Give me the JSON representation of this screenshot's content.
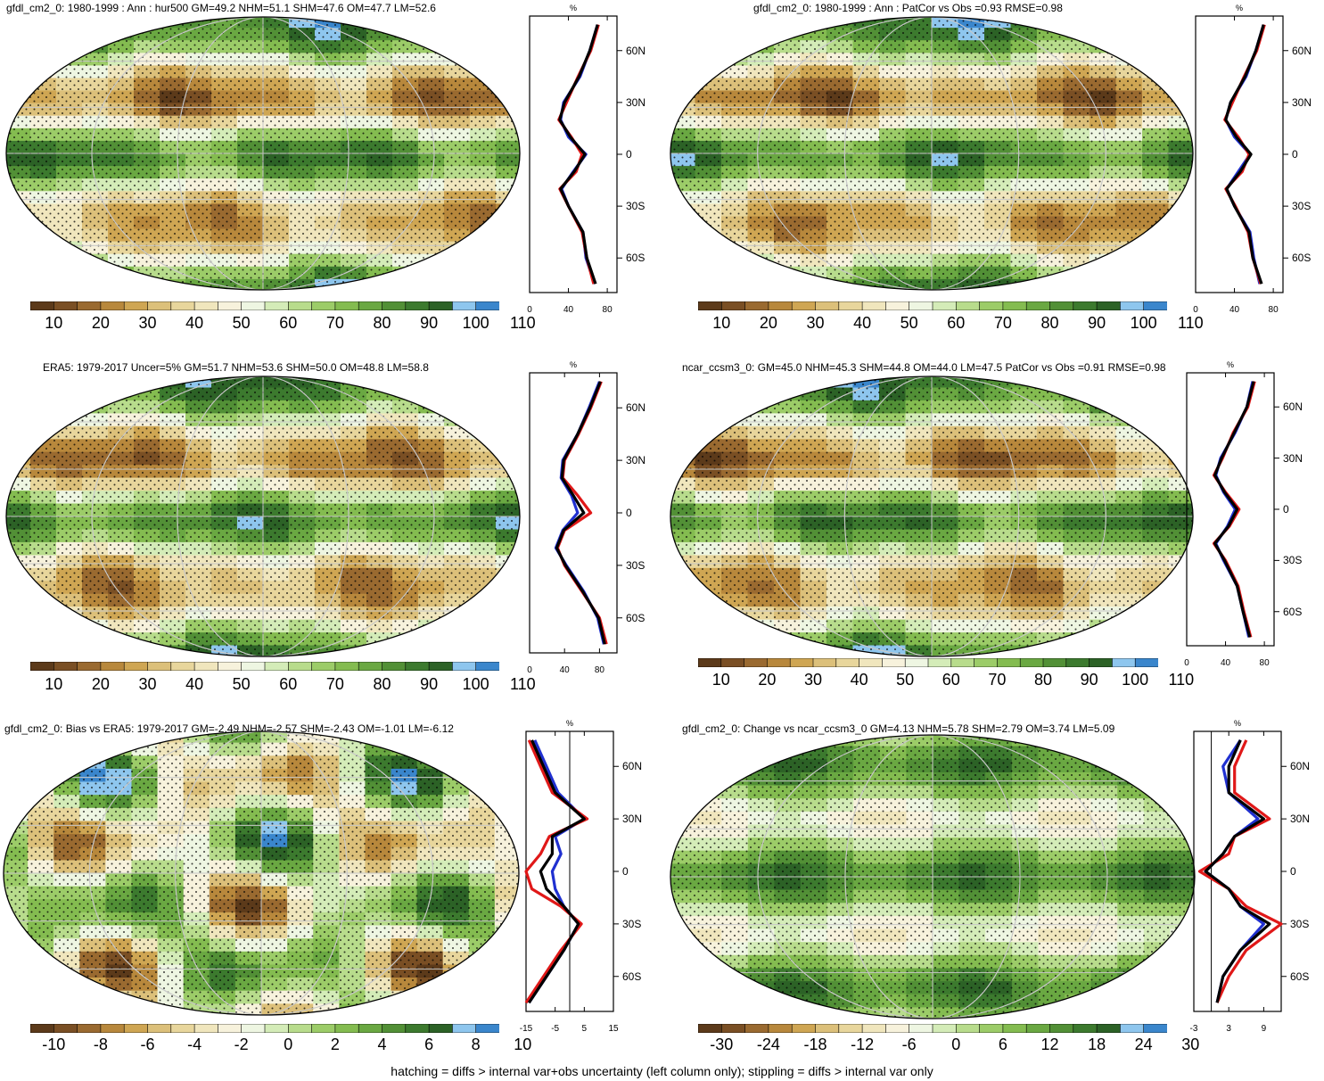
{
  "footer": "hatching = diffs > internal var+obs uncertainty (left column only); stippling = diffs > internal var only",
  "colors": {
    "browns": [
      "#5c3a1a",
      "#7a4f24",
      "#9a6a30",
      "#b8883c",
      "#cfa653",
      "#dcc07a",
      "#e8d69c",
      "#f0e6bd",
      "#f7f2dc"
    ],
    "white": "#ffffff",
    "greens": [
      "#eef6e2",
      "#d4ecb8",
      "#b8dc8c",
      "#9ccc68",
      "#84bc50",
      "#6aa842",
      "#529036",
      "#3c7a2e",
      "#2c6226"
    ],
    "blues": [
      "#8ec6ee",
      "#3a86cc"
    ],
    "obs": "#2030d0",
    "model": "#e01818",
    "ref": "#000000"
  },
  "chart_data": [
    {
      "type": "heatmap",
      "title": "gfdl_cm2_0: 1980-1999 : Ann : hur500 GM=49.2 NHM=51.1 SHM=47.6 OM=47.7 LM=52.6",
      "colorbar_labels": [
        "10",
        "20",
        "30",
        "40",
        "50",
        "60",
        "70",
        "80",
        "90",
        "100",
        "110"
      ],
      "zonal": {
        "unit": "%",
        "xticks": [
          "0",
          "40",
          "80"
        ],
        "xlim": [
          0,
          90
        ],
        "yticks": [
          "60N",
          "30N",
          "0",
          "30S",
          "60S"
        ],
        "lat": [
          -75,
          -60,
          -45,
          -30,
          -20,
          -10,
          0,
          10,
          20,
          30,
          45,
          60,
          75
        ],
        "series": [
          {
            "color": "blue",
            "values": [
              67,
              58,
              55,
              40,
              33,
              45,
              58,
              40,
              32,
              35,
              52,
              62,
              70
            ]
          },
          {
            "color": "red",
            "values": [
              66,
              59,
              54,
              40,
              31,
              48,
              54,
              43,
              30,
              38,
              50,
              63,
              71
            ]
          },
          {
            "color": "black",
            "values": [
              68,
              59,
              55,
              40,
              32,
              46,
              57,
              42,
              31,
              36,
              51,
              62,
              70
            ]
          }
        ]
      }
    },
    {
      "type": "heatmap",
      "title": "gfdl_cm2_0: 1980-1999 : Ann : PatCor vs Obs =0.93 RMSE=0.98",
      "colorbar_labels": [
        "10",
        "20",
        "30",
        "40",
        "50",
        "60",
        "70",
        "80",
        "90",
        "100",
        "110"
      ],
      "zonal": {
        "unit": "%",
        "xticks": [
          "0",
          "40",
          "80"
        ],
        "xlim": [
          0,
          90
        ],
        "yticks": [
          "60N",
          "30N",
          "0",
          "30S",
          "60S"
        ],
        "lat": [
          -75,
          -60,
          -45,
          -30,
          -20,
          -10,
          0,
          10,
          20,
          30,
          45,
          60,
          75
        ],
        "series": [
          {
            "color": "blue",
            "values": [
              66,
              60,
              56,
              40,
              32,
              44,
              56,
              40,
              31,
              36,
              52,
              62,
              70
            ]
          },
          {
            "color": "red",
            "values": [
              67,
              59,
              54,
              41,
              31,
              48,
              55,
              44,
              30,
              38,
              50,
              63,
              71
            ]
          },
          {
            "color": "black",
            "values": [
              68,
              59,
              55,
              40,
              32,
              46,
              57,
              42,
              31,
              36,
              51,
              62,
              70
            ]
          }
        ]
      }
    },
    {
      "type": "heatmap",
      "title": "ERA5: 1979-2017 Uncer=5% GM=51.7 NHM=53.6 SHM=50.0 OM=48.8 LM=58.8",
      "colorbar_labels": [
        "10",
        "20",
        "30",
        "40",
        "50",
        "60",
        "70",
        "80",
        "90",
        "100",
        "110"
      ],
      "zonal": {
        "unit": "%",
        "xticks": [
          "0",
          "40",
          "80"
        ],
        "xlim": [
          0,
          100
        ],
        "yticks": [
          "60N",
          "30N",
          "0",
          "30S",
          "60S"
        ],
        "lat": [
          -75,
          -60,
          -45,
          -30,
          -20,
          -10,
          0,
          10,
          20,
          30,
          45,
          60,
          75
        ],
        "series": [
          {
            "color": "blue",
            "values": [
              85,
              78,
              62,
              42,
              30,
              38,
              55,
              48,
              36,
              38,
              55,
              68,
              80
            ]
          },
          {
            "color": "red",
            "values": [
              88,
              80,
              60,
              40,
              32,
              40,
              70,
              55,
              38,
              40,
              56,
              70,
              82
            ]
          },
          {
            "color": "black",
            "values": [
              86,
              79,
              61,
              41,
              31,
              39,
              62,
              50,
              37,
              39,
              55,
              69,
              81
            ]
          }
        ]
      }
    },
    {
      "type": "heatmap",
      "title": "ncar_ccsm3_0: GM=45.0 NHM=45.3 SHM=44.8 OM=44.0 LM=47.5 PatCor vs Obs =0.91 RMSE=0.98",
      "colorbar_labels": [
        "10",
        "20",
        "30",
        "40",
        "50",
        "60",
        "70",
        "80",
        "90",
        "100",
        "110"
      ],
      "zonal": {
        "unit": "%",
        "xticks": [
          "0",
          "40",
          "80"
        ],
        "xlim": [
          0,
          90
        ],
        "yticks": [
          "60N",
          "30N",
          "0",
          "30S",
          "60S"
        ],
        "lat": [
          -75,
          -60,
          -45,
          -30,
          -20,
          -10,
          0,
          10,
          20,
          30,
          45,
          60,
          75
        ],
        "series": [
          {
            "color": "blue",
            "values": [
              64,
              58,
              52,
              38,
              30,
              42,
              50,
              38,
              30,
              35,
              50,
              62,
              68
            ]
          },
          {
            "color": "red",
            "values": [
              66,
              59,
              53,
              40,
              28,
              44,
              54,
              40,
              28,
              37,
              48,
              63,
              70
            ]
          },
          {
            "color": "black",
            "values": [
              65,
              58,
              52,
              39,
              29,
              43,
              52,
              39,
              29,
              36,
              49,
              62,
              69
            ]
          }
        ]
      }
    },
    {
      "type": "heatmap",
      "title": "gfdl_cm2_0: Bias vs ERA5: 1979-2017 GM=-2.49 NHM=-2.57 SHM=-2.43 OM=-1.01 LM=-6.12",
      "colorbar_labels": [
        "-10",
        "-8",
        "-6",
        "-4",
        "-2",
        "0",
        "2",
        "4",
        "6",
        "8",
        "10"
      ],
      "zonal": {
        "unit": "%",
        "xticks": [
          "-15",
          "-5",
          "5",
          "15"
        ],
        "xlim": [
          -15,
          15
        ],
        "yticks": [
          "60N",
          "30N",
          "0",
          "30S",
          "60S"
        ],
        "lat": [
          -75,
          -60,
          -45,
          -30,
          -20,
          -10,
          0,
          10,
          20,
          30,
          45,
          60,
          75
        ],
        "series": [
          {
            "color": "blue",
            "values": [
              -14,
              -8,
              -2,
              3,
              -2,
              -5,
              -6,
              -3,
              -5,
              5,
              -4,
              -8,
              -12
            ]
          },
          {
            "color": "red",
            "values": [
              -15,
              -9,
              -3,
              4,
              -3,
              -13,
              -15,
              -10,
              -7,
              6,
              -6,
              -10,
              -14
            ]
          },
          {
            "color": "black",
            "values": [
              -14,
              -8,
              -2,
              3,
              -2,
              -8,
              -10,
              -6,
              -6,
              5,
              -5,
              -9,
              -13
            ]
          }
        ]
      }
    },
    {
      "type": "heatmap",
      "title": "gfdl_cm2_0: Change vs ncar_ccsm3_0 GM=4.13 NHM=5.78 SHM=2.79 OM=3.74 LM=5.09",
      "colorbar_labels": [
        "-30",
        "-24",
        "-18",
        "-12",
        "-6",
        "0",
        "6",
        "12",
        "18",
        "24",
        "30"
      ],
      "zonal": {
        "unit": "%",
        "xticks": [
          "-3",
          "3",
          "9"
        ],
        "xlim": [
          -3,
          12
        ],
        "yticks": [
          "60N",
          "30N",
          "0",
          "30S",
          "60S"
        ],
        "lat": [
          -75,
          -60,
          -45,
          -30,
          -20,
          -10,
          0,
          10,
          20,
          30,
          45,
          60,
          75
        ],
        "series": [
          {
            "color": "blue",
            "values": [
              1,
              2,
              5,
              9,
              5,
              3,
              -1,
              2,
              4,
              8,
              3,
              2,
              5
            ]
          },
          {
            "color": "red",
            "values": [
              1,
              3,
              6,
              12,
              6,
              3,
              -2,
              3,
              4,
              10,
              4,
              4,
              6
            ]
          },
          {
            "color": "black",
            "values": [
              1,
              2,
              5,
              10,
              5,
              3,
              -1,
              2,
              4,
              9,
              3,
              3,
              5
            ]
          }
        ]
      }
    }
  ]
}
